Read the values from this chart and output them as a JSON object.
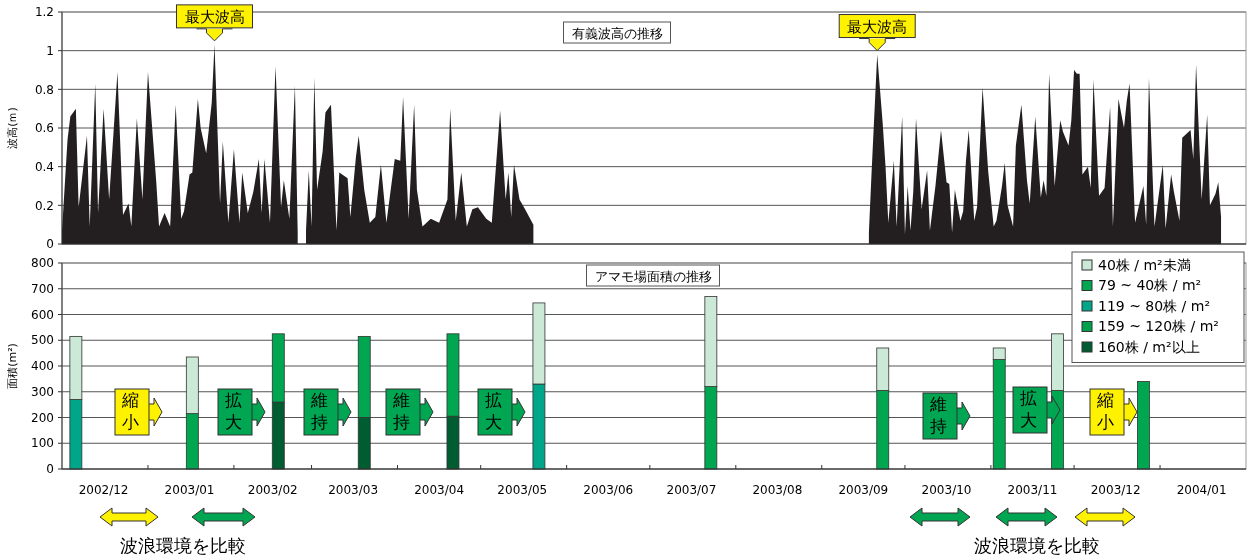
{
  "chart_data": [
    {
      "type": "area",
      "title": "有義波高の推移",
      "ylabel": "波高(ｍ)",
      "xlim": [
        "2002-12-01",
        "2004-02-01"
      ],
      "ylim": [
        0,
        1.2
      ],
      "yticks": [
        0,
        0.2,
        0.4,
        0.6,
        0.8,
        1,
        1.2
      ],
      "grid": "y",
      "tick_labels": "y",
      "color": "#231f20",
      "x": [
        "2002-12-01",
        "2002-12-03",
        "2002-12-04",
        "2002-12-06",
        "2002-12-07",
        "2002-12-10",
        "2002-12-11",
        "2002-12-13",
        "2002-12-14",
        "2002-12-16",
        "2002-12-18",
        "2002-12-21",
        "2002-12-23",
        "2002-12-25",
        "2002-12-26",
        "2002-12-28",
        "2002-12-30",
        "2003-01-01",
        "2003-01-04",
        "2003-01-05",
        "2003-01-07",
        "2003-01-09",
        "2003-01-11",
        "2003-01-13",
        "2003-01-14",
        "2003-01-16",
        "2003-01-17",
        "2003-01-19",
        "2003-01-20",
        "2003-01-22",
        "2003-01-24",
        "2003-01-25",
        "2003-01-27",
        "2003-01-28",
        "2003-01-30",
        "2003-02-01",
        "2003-02-03",
        "2003-02-04",
        "2003-02-06",
        "2003-02-08",
        "2003-02-10",
        "2003-02-11",
        "2003-02-12",
        "2003-02-14",
        "2003-02-16",
        "2003-02-18",
        "2003-02-19",
        "2003-02-21",
        "2003-02-23",
        "2003-02-24",
        "2003-02-25",
        "2003-02-27",
        "2003-02-28",
        "2003-03-01",
        "2003-03-02",
        "2003-03-03",
        "2003-03-05",
        "2003-03-06",
        "2003-03-08",
        "2003-03-10",
        "2003-03-11",
        "2003-03-14",
        "2003-03-15",
        "2003-03-17",
        "2003-03-18",
        "2003-03-20",
        "2003-03-22",
        "2003-03-24",
        "2003-03-26",
        "2003-03-28",
        "2003-03-31",
        "2003-04-02",
        "2003-04-03",
        "2003-04-05",
        "2003-04-07",
        "2003-04-08",
        "2003-04-10",
        "2003-04-13",
        "2003-04-16",
        "2003-04-19",
        "2003-04-20",
        "2003-04-22",
        "2003-04-24",
        "2003-04-26",
        "2003-04-28",
        "2003-04-30",
        "2003-05-03",
        "2003-05-05",
        "2003-05-08",
        "2003-05-10",
        "2003-05-11",
        "2003-05-12",
        "2003-05-13",
        "2003-05-15",
        "2003-05-17",
        "2003-05-20",
        "2003-05-21",
        "2003-09-18",
        "2003-09-19",
        "2003-09-21",
        "2003-09-23",
        "2003-09-24",
        "2003-09-25",
        "2003-09-27",
        "2003-09-28",
        "2003-09-30",
        "2003-10-01",
        "2003-10-02",
        "2003-10-03",
        "2003-10-04",
        "2003-10-05",
        "2003-10-07",
        "2003-10-09",
        "2003-10-10",
        "2003-10-12",
        "2003-10-14",
        "2003-10-16",
        "2003-10-17",
        "2003-10-18",
        "2003-10-19",
        "2003-10-21",
        "2003-10-22",
        "2003-10-23",
        "2003-10-24",
        "2003-10-26",
        "2003-10-27",
        "2003-10-29",
        "2003-10-31",
        "2003-11-02",
        "2003-11-03",
        "2003-11-05",
        "2003-11-06",
        "2003-11-07",
        "2003-11-09",
        "2003-11-10",
        "2003-11-12",
        "2003-11-14",
        "2003-11-15",
        "2003-11-17",
        "2003-11-19",
        "2003-11-20",
        "2003-11-21",
        "2003-11-22",
        "2003-11-24",
        "2003-11-26",
        "2003-11-27",
        "2003-11-29",
        "2003-11-30",
        "2003-12-01",
        "2003-12-02",
        "2003-12-03",
        "2003-12-04",
        "2003-12-06",
        "2003-12-07",
        "2003-12-08",
        "2003-12-10",
        "2003-12-12",
        "2003-12-14",
        "2003-12-15",
        "2003-12-17",
        "2003-12-19",
        "2003-12-20",
        "2003-12-21",
        "2003-12-23",
        "2003-12-26",
        "2003-12-27",
        "2003-12-28",
        "2003-12-30",
        "2004-01-02",
        "2004-01-03",
        "2004-01-05",
        "2004-01-06",
        "2004-01-08",
        "2004-01-09",
        "2004-01-12",
        "2004-01-13",
        "2004-01-14",
        "2004-01-16",
        "2004-01-18",
        "2004-01-19",
        "2004-01-21",
        "2004-01-22",
        "2004-01-23"
      ],
      "values": [
        0.07,
        0.54,
        0.66,
        0.7,
        0.19,
        0.56,
        0.09,
        0.83,
        0.16,
        0.7,
        0.23,
        0.89,
        0.15,
        0.21,
        0.09,
        0.65,
        0.23,
        0.89,
        0.32,
        0.09,
        0.16,
        0.09,
        0.72,
        0.13,
        0.17,
        0.36,
        0.37,
        0.75,
        0.6,
        0.47,
        0.73,
        1.03,
        0.21,
        0.53,
        0.11,
        0.49,
        0.11,
        0.37,
        0.16,
        0.27,
        0.44,
        0.16,
        0.44,
        0.11,
        0.92,
        0.19,
        0.33,
        0.13,
        0.82,
        0.06,
        null,
        0.07,
        0.38,
        0.09,
        0.86,
        0.28,
        0.48,
        0.68,
        0.72,
        0.07,
        0.37,
        0.34,
        0.14,
        0.45,
        0.56,
        0.28,
        0.11,
        0.14,
        0.41,
        0.11,
        0.44,
        0.43,
        0.76,
        0.13,
        0.72,
        0.28,
        0.09,
        0.13,
        0.11,
        0.23,
        0.7,
        0.12,
        0.37,
        0.09,
        0.18,
        0.19,
        0.13,
        0.11,
        0.69,
        0.23,
        0.37,
        0.14,
        0.41,
        0.23,
        0.18,
        0.1,
        null,
        0.06,
        0.38,
        0.98,
        0.62,
        0.4,
        0.11,
        0.43,
        0.09,
        0.66,
        0.05,
        0.3,
        0.07,
        0.27,
        0.65,
        0.18,
        0.38,
        0.07,
        0.3,
        0.59,
        0.32,
        0.31,
        0.06,
        0.28,
        0.12,
        0.17,
        0.43,
        0.59,
        0.12,
        0.19,
        0.81,
        0.38,
        0.09,
        0.12,
        0.3,
        0.42,
        0.2,
        0.09,
        0.51,
        0.72,
        0.33,
        0.21,
        0.66,
        0.24,
        0.33,
        0.25,
        0.88,
        0.3,
        0.64,
        0.58,
        0.51,
        0.64,
        0.9,
        0.88,
        0.88,
        0.36,
        0.4,
        0.29,
        0.85,
        0.25,
        0.29,
        0.71,
        0.09,
        0.75,
        0.6,
        0.74,
        0.83,
        0.11,
        0.3,
        0.1,
        0.86,
        0.09,
        0.41,
        0.08,
        0.36,
        0.27,
        0.12,
        0.55,
        0.59,
        0.44,
        0.93,
        0.23,
        0.67,
        0.2,
        0.26,
        0.32,
        0.14
      ],
      "annotations": [
        {
          "text": "最大波高",
          "x": "2003-01-25",
          "y": 1.03
        },
        {
          "text": "最大波高",
          "x": "2003-09-21",
          "y": 0.98
        }
      ]
    },
    {
      "type": "bar",
      "stacked": true,
      "title": "アマモ場面積の推移",
      "ylabel": "面積(m²)",
      "xlim": [
        "2002-12-01",
        "2004-02-01"
      ],
      "ylim": [
        0,
        800
      ],
      "yticks": [
        0,
        100,
        200,
        300,
        400,
        500,
        600,
        700,
        800
      ],
      "grid": "y",
      "legend": "top right",
      "xticks": [
        {
          "value": "2002-12-16",
          "label": "2002/12"
        },
        {
          "value": "2003-01-01",
          "label": null
        },
        {
          "value": "2003-01-16",
          "label": "2003/01"
        },
        {
          "value": "2003-02-01",
          "label": null
        },
        {
          "value": "2003-02-15",
          "label": "2003/02"
        },
        {
          "value": "2003-03-01",
          "label": null
        },
        {
          "value": "2003-03-16",
          "label": "2003/03"
        },
        {
          "value": "2003-04-01",
          "label": null
        },
        {
          "value": "2003-04-16",
          "label": "2003/04"
        },
        {
          "value": "2003-05-01",
          "label": null
        },
        {
          "value": "2003-05-16",
          "label": "2003/05"
        },
        {
          "value": "2003-06-01",
          "label": null
        },
        {
          "value": "2003-06-16",
          "label": "2003/06"
        },
        {
          "value": "2003-07-01",
          "label": null
        },
        {
          "value": "2003-07-16",
          "label": "2003/07"
        },
        {
          "value": "2003-08-01",
          "label": null
        },
        {
          "value": "2003-08-16",
          "label": "2003/08"
        },
        {
          "value": "2003-09-01",
          "label": null
        },
        {
          "value": "2003-09-16",
          "label": "2003/09"
        },
        {
          "value": "2003-10-01",
          "label": null
        },
        {
          "value": "2003-10-16",
          "label": "2003/10"
        },
        {
          "value": "2003-11-01",
          "label": null
        },
        {
          "value": "2003-11-16",
          "label": "2003/11"
        },
        {
          "value": "2003-12-01",
          "label": null
        },
        {
          "value": "2003-12-16",
          "label": "2003/12"
        },
        {
          "value": "2004-01-01",
          "label": null
        },
        {
          "value": "2004-01-16",
          "label": "2004/01"
        }
      ],
      "x": [
        "2002-12-06",
        "2003-01-17",
        "2003-02-17",
        "2003-03-20",
        "2003-04-21",
        "2003-05-22",
        "2003-07-23",
        "2003-09-23",
        "2003-11-04",
        "2003-11-25",
        "2003-12-26"
      ],
      "series": [
        {
          "name": "160株 / m²以上",
          "color": "#005c31",
          "values": [
            null,
            null,
            260,
            200,
            205,
            null,
            null,
            null,
            null,
            null,
            null
          ]
        },
        {
          "name": "159 ~ 120株 / m²",
          "color": "#00a04d",
          "values": [
            null,
            null,
            null,
            null,
            null,
            null,
            null,
            null,
            null,
            null,
            null
          ]
        },
        {
          "name": "119 ~ 80株 / m²",
          "color": "#00a689",
          "values": [
            270,
            null,
            null,
            null,
            null,
            330,
            null,
            null,
            null,
            null,
            null
          ]
        },
        {
          "name": "79 ~ 40株 / m²",
          "color": "#00a650",
          "values": [
            null,
            215,
            265,
            315,
            320,
            null,
            320,
            305,
            425,
            305,
            340
          ]
        },
        {
          "name": "40株 / m²未満",
          "color": "#cce8d6",
          "values": [
            245,
            220,
            null,
            null,
            null,
            315,
            350,
            165,
            45,
            220,
            null
          ]
        }
      ],
      "annotations": [
        "縮小",
        "拡大",
        "維持",
        "維持",
        "拡大",
        "維持",
        "拡大",
        "縮小",
        "波浪環境を比較",
        "波浪環境を比較"
      ]
    }
  ]
}
